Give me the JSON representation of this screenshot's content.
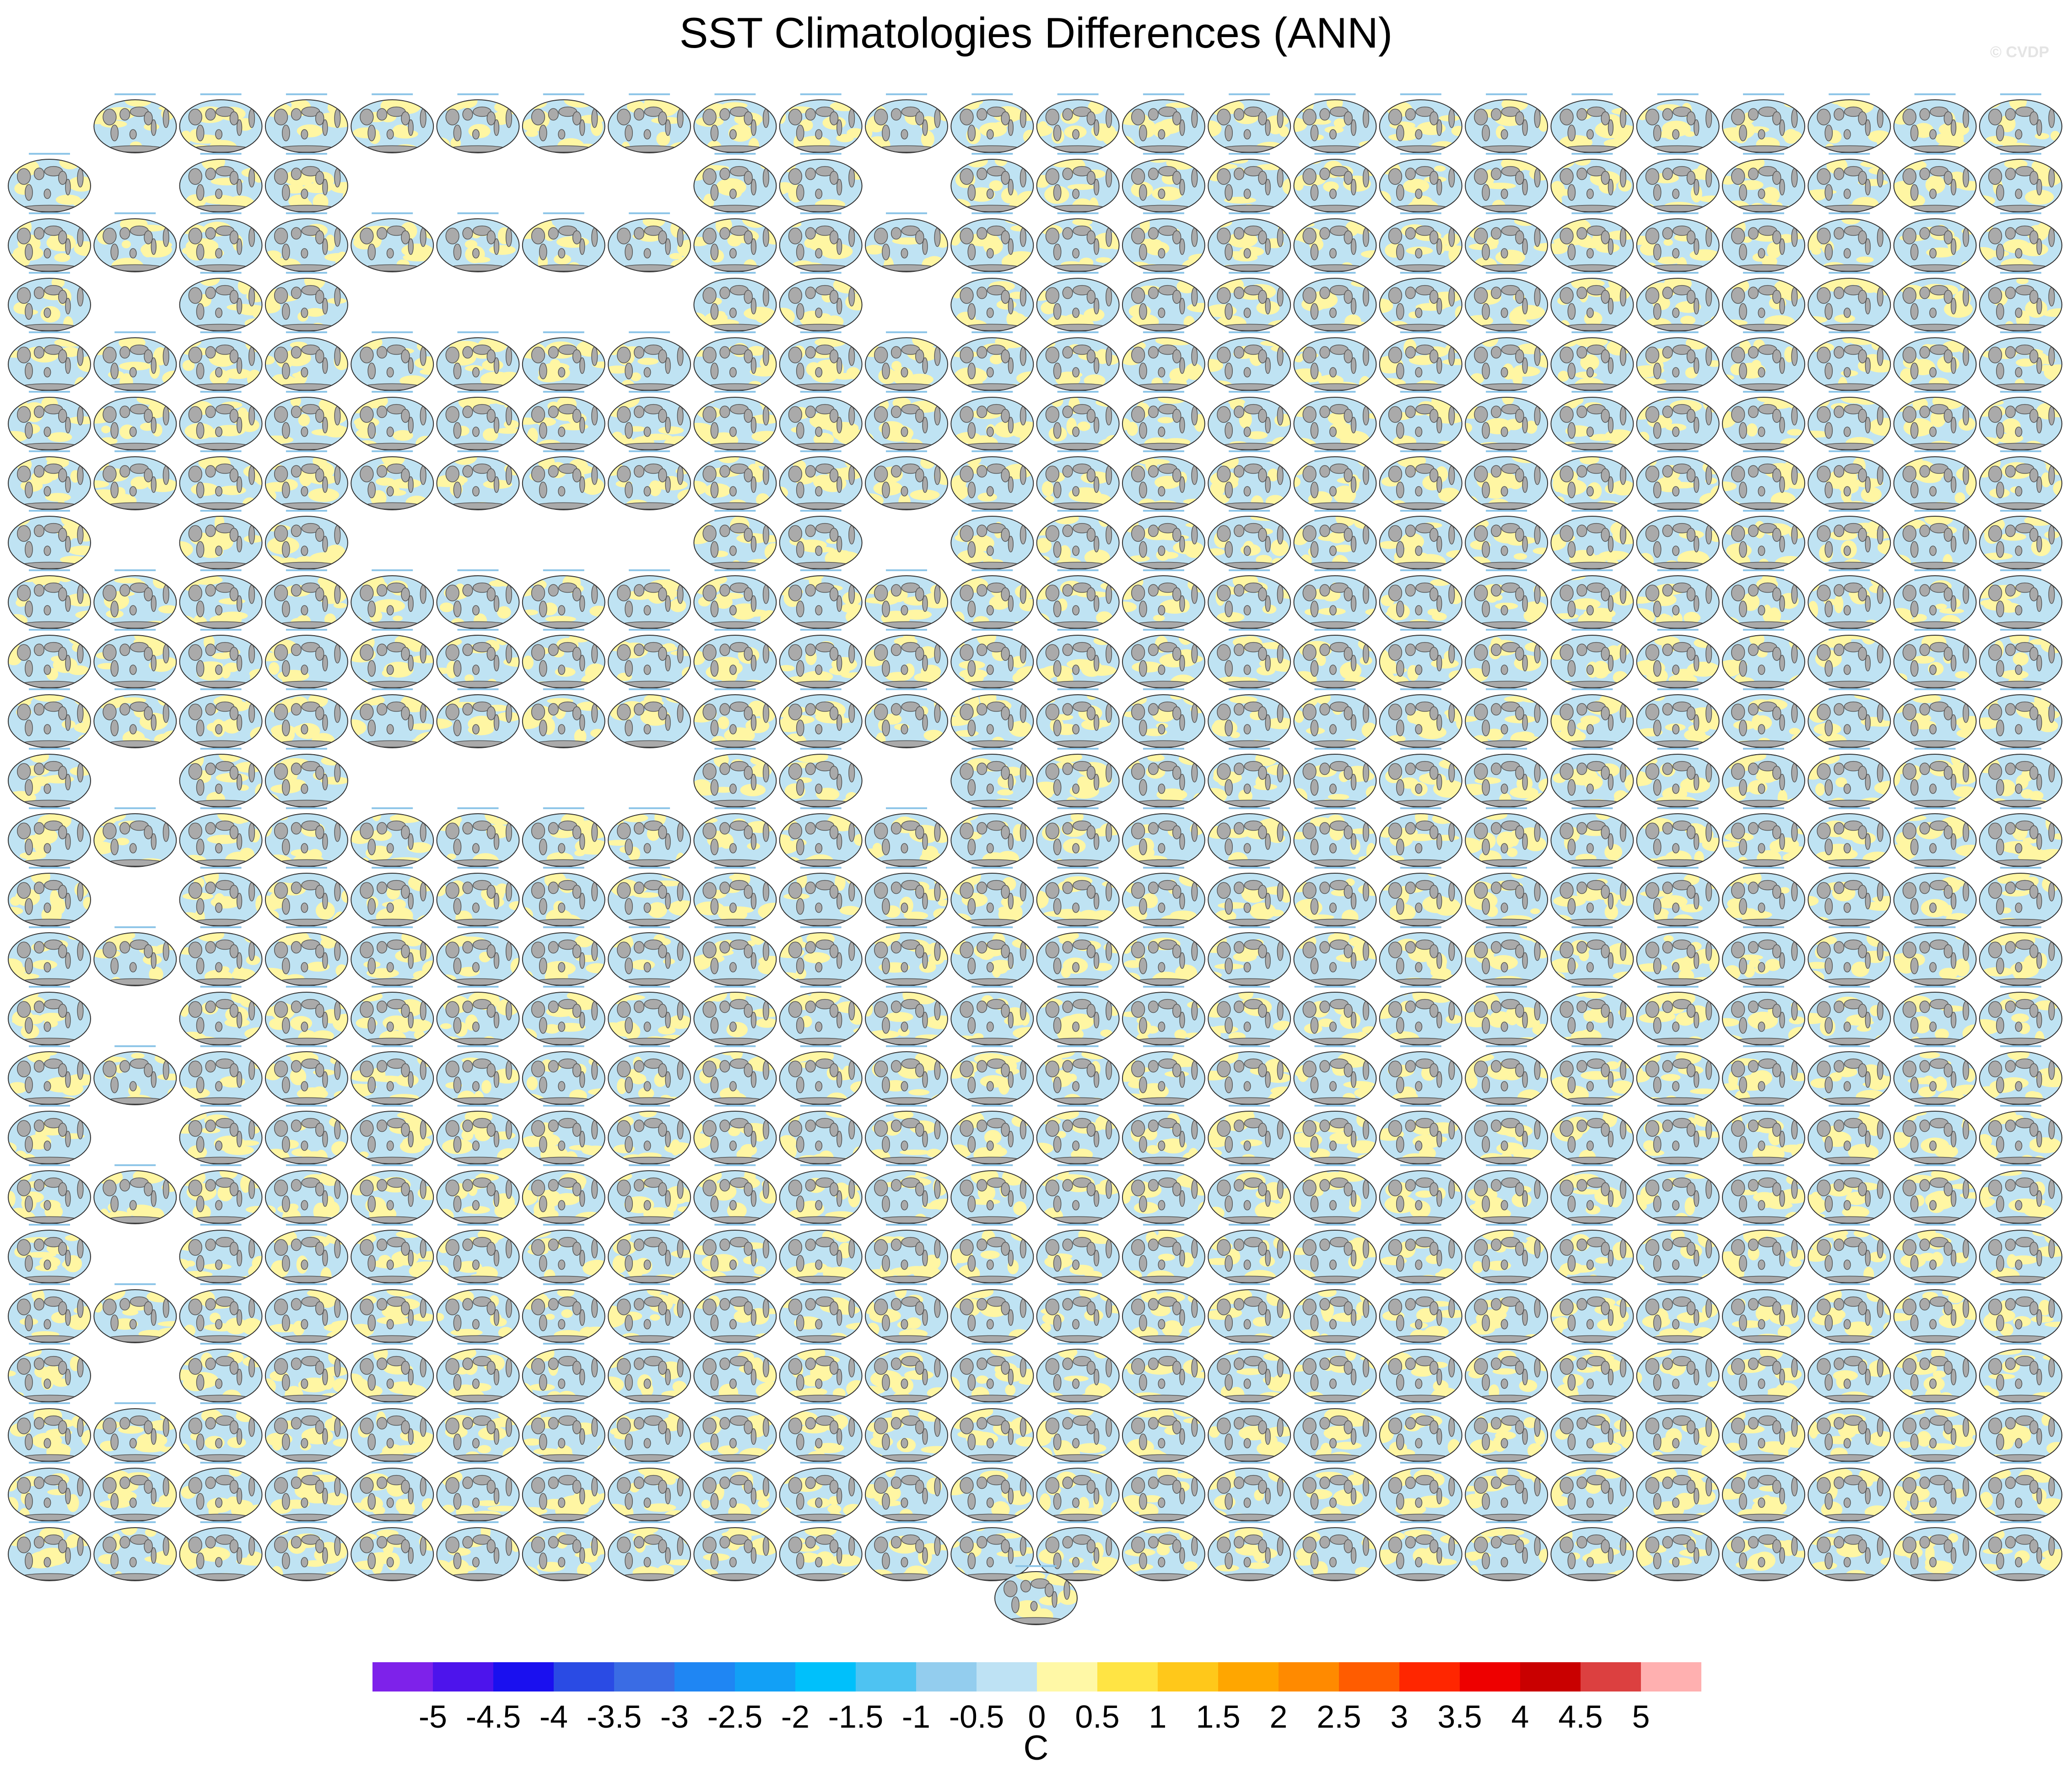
{
  "title": "SST Climatologies Differences (ANN)",
  "copyright": "© CVDP",
  "chart_data": {
    "type": "heatmap",
    "title": "SST Climatologies Differences (ANN)",
    "description_note": "",
    "panel_grid": {
      "columns": 24,
      "rows": 25,
      "empty_slots": [
        [
          1,
          1
        ],
        [
          1,
          4
        ],
        [
          1,
          5
        ],
        [
          1,
          6
        ],
        [
          1,
          7
        ],
        [
          1,
          10
        ],
        [
          3,
          1
        ],
        [
          3,
          4
        ],
        [
          3,
          5
        ],
        [
          3,
          6
        ],
        [
          3,
          7
        ],
        [
          3,
          10
        ],
        [
          7,
          1
        ],
        [
          7,
          4
        ],
        [
          7,
          5
        ],
        [
          7,
          6
        ],
        [
          7,
          7
        ],
        [
          7,
          10
        ],
        [
          11,
          1
        ],
        [
          11,
          4
        ],
        [
          11,
          5
        ],
        [
          11,
          6
        ],
        [
          11,
          7
        ],
        [
          11,
          10
        ],
        [
          13,
          1
        ],
        [
          15,
          1
        ],
        [
          17,
          1
        ],
        [
          19,
          1
        ],
        [
          21,
          1
        ]
      ],
      "missing_first_row": [
        0
      ],
      "extra_centered_panel": true
    },
    "colorbar": {
      "units": "C",
      "tick_labels": [
        "-5",
        "-4.5",
        "-4",
        "-3.5",
        "-3",
        "-2.5",
        "-2",
        "-1.5",
        "-1",
        "-0.5",
        "0",
        "0.5",
        "1",
        "1.5",
        "2",
        "2.5",
        "3",
        "3.5",
        "4",
        "4.5",
        "5"
      ],
      "colors": [
        "#7e22ea",
        "#4d14ec",
        "#1a10ef",
        "#2a4be4",
        "#3a6ce4",
        "#1f86f3",
        "#12a0f6",
        "#00c0fb",
        "#4ec3f2",
        "#93cdee",
        "#bee2f4",
        "#fff8a6",
        "#ffe444",
        "#ffc81a",
        "#ffa600",
        "#ff8a00",
        "#ff5c00",
        "#ff2600",
        "#ee0000",
        "#c90000",
        "#dc4040",
        "#ffb0b0"
      ]
    },
    "map_colors": {
      "land": "#aaaaaa",
      "negative": "#bfe3f3",
      "positive": "#fff6a3",
      "ocean_light": "#d9eef8"
    }
  }
}
